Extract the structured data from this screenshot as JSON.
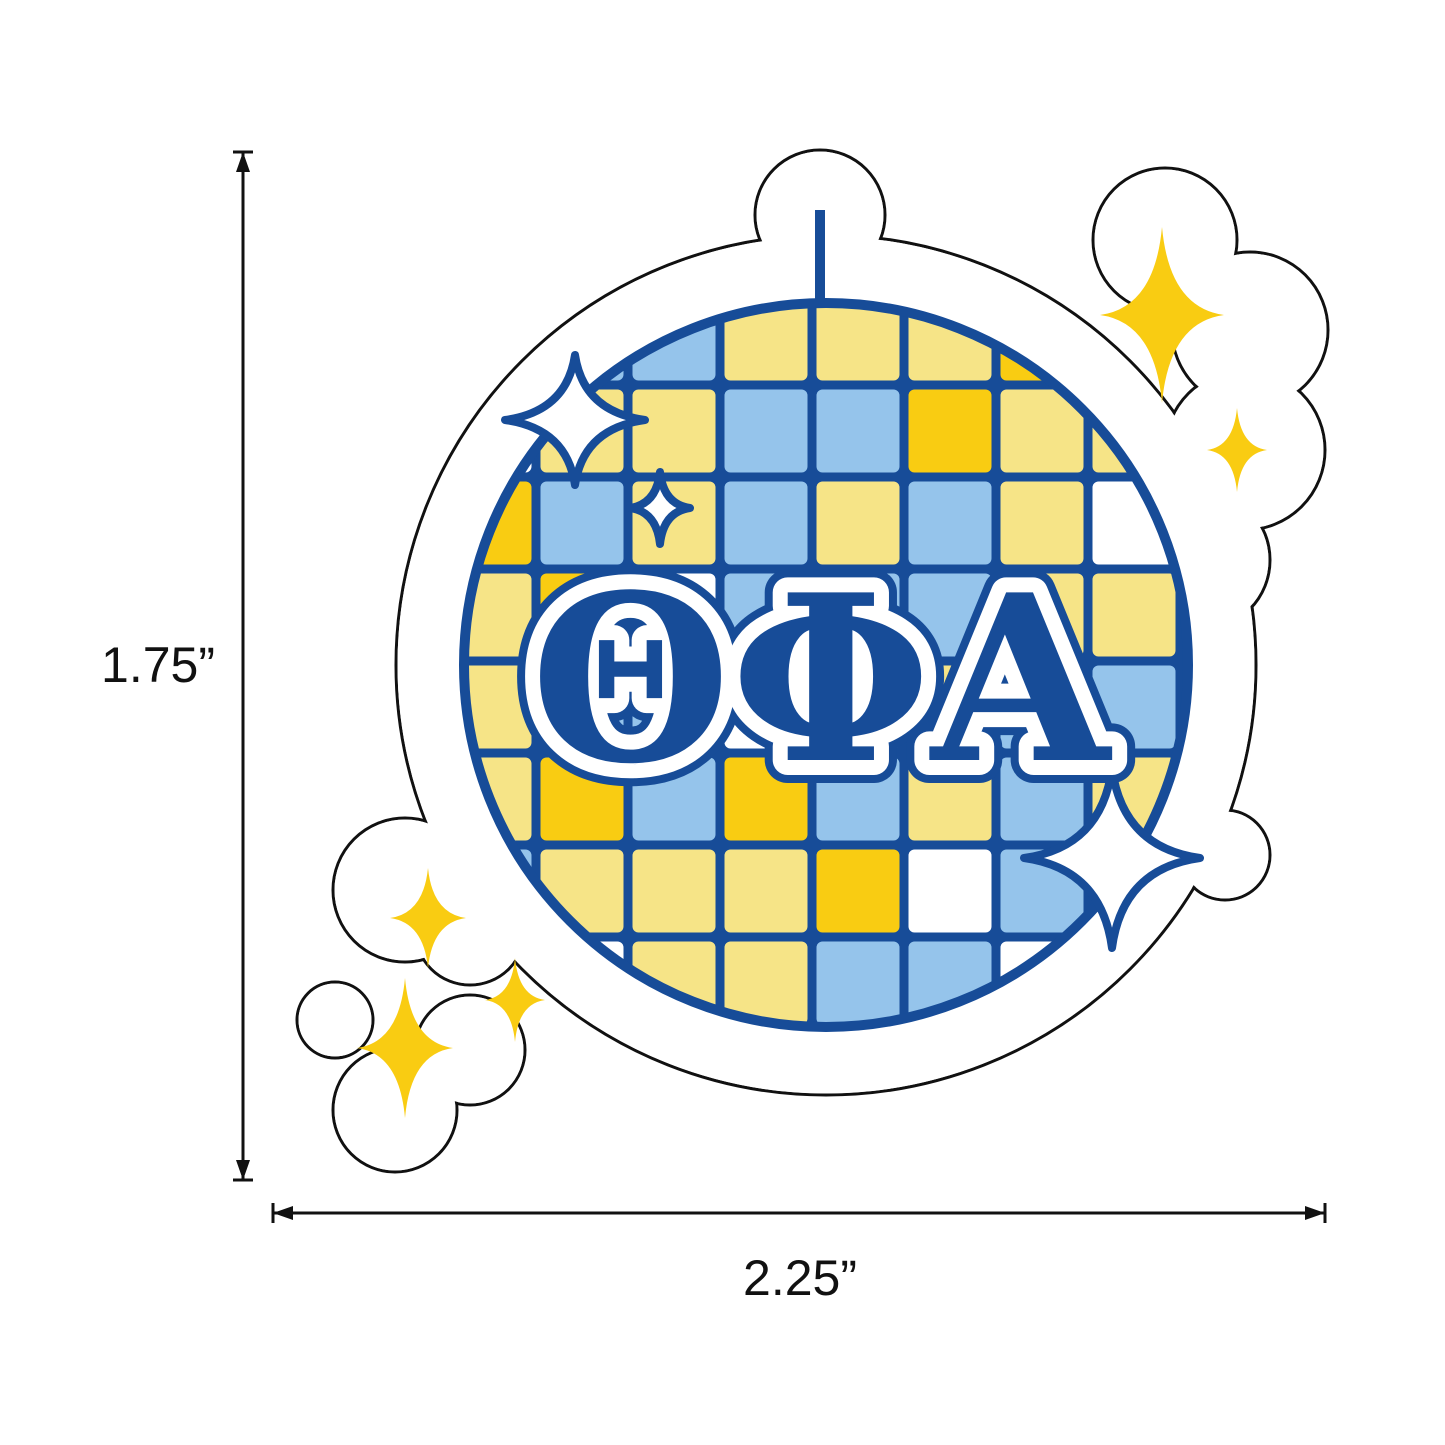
{
  "product": {
    "letters": "ΘΦΑ",
    "height_label": "1.75”",
    "width_label": "2.25”"
  },
  "colors": {
    "dark_blue": "#174c98",
    "light_blue": "#95c4eb",
    "pale_yellow": "#f6e487",
    "gold": "#f9cc12",
    "white": "#ffffff",
    "outline": "#111111"
  },
  "icons": [
    "disco-ball",
    "sparkle-star"
  ]
}
